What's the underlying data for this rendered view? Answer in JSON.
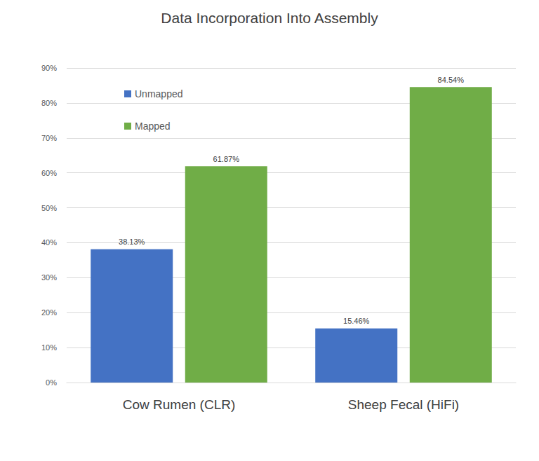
{
  "chart_data": {
    "type": "bar",
    "title": "Data Incorporation Into Assembly",
    "categories": [
      "Cow Rumen (CLR)",
      "Sheep Fecal (HiFi)"
    ],
    "series": [
      {
        "name": "Unmapped",
        "color": "#4472c4",
        "values": [
          38.13,
          15.46
        ],
        "value_labels": [
          "38.13%",
          "15.46%"
        ]
      },
      {
        "name": "Mapped",
        "color": "#70ad47",
        "values": [
          61.87,
          84.54
        ],
        "value_labels": [
          "61.87%",
          "84.54%"
        ]
      }
    ],
    "ylim": [
      0,
      90
    ],
    "yticks": [
      {
        "value": 0,
        "label": "0%"
      },
      {
        "value": 10,
        "label": "10%"
      },
      {
        "value": 20,
        "label": "20%"
      },
      {
        "value": 30,
        "label": "30%"
      },
      {
        "value": 40,
        "label": "40%"
      },
      {
        "value": 50,
        "label": "50%"
      },
      {
        "value": 60,
        "label": "60%"
      },
      {
        "value": 70,
        "label": "70%"
      },
      {
        "value": 80,
        "label": "80%"
      },
      {
        "value": 90,
        "label": "90%"
      }
    ],
    "grid": true,
    "legend": "upper left",
    "data_labels": true
  }
}
